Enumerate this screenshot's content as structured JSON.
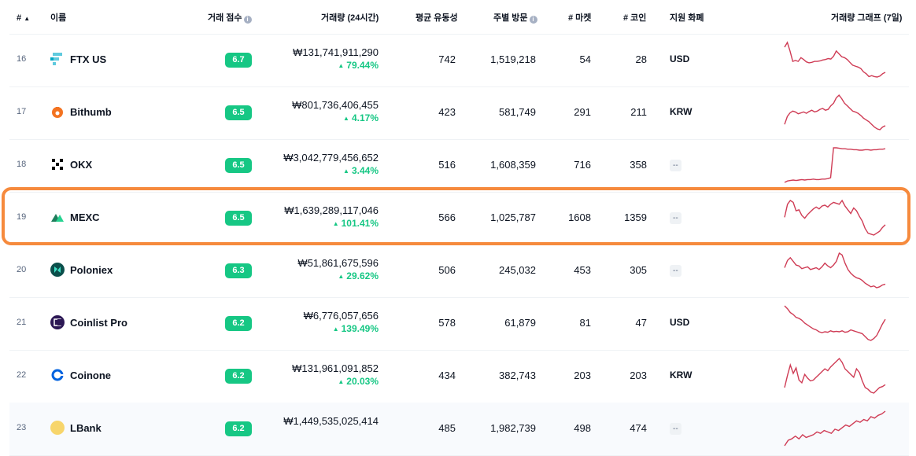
{
  "header": {
    "rank": "#",
    "sort_icon": "▲",
    "name": "이름",
    "score": "거래 점수",
    "volume": "거래량",
    "volume_period": "(24시간)",
    "liquidity": "평균 유동성",
    "visits": "주별 방문",
    "markets": "# 마켓",
    "coins": "# 코인",
    "fiat": "지원 화폐",
    "graph": "거래량 그래프",
    "graph_period": "(7일)"
  },
  "accent_green": "#16c784",
  "spark_color": "#cf3c55",
  "highlight_color": "#f68a3d",
  "rows": [
    {
      "rank": "16",
      "name": "FTX US",
      "logo": "ftx-logo",
      "score": "6.7",
      "volume": "₩131,741,911,290",
      "change": "79.44%",
      "liquidity": "742",
      "visits": "1,519,218",
      "markets": "54",
      "coins": "28",
      "fiat": "USD",
      "spark": [
        80,
        90,
        72,
        50,
        52,
        50,
        58,
        54,
        49,
        47,
        48,
        50,
        50,
        51,
        53,
        54,
        56,
        55,
        61,
        72,
        66,
        60,
        58,
        54,
        48,
        42,
        40,
        38,
        35,
        28,
        24,
        18,
        20,
        18,
        17,
        19,
        24,
        27
      ]
    },
    {
      "rank": "17",
      "name": "Bithumb",
      "logo": "bithumb-logo",
      "score": "6.5",
      "volume": "₩801,736,406,455",
      "change": "4.17%",
      "liquidity": "423",
      "visits": "581,749",
      "markets": "291",
      "coins": "211",
      "fiat": "KRW",
      "spark": [
        30,
        48,
        56,
        60,
        58,
        54,
        56,
        58,
        55,
        59,
        62,
        58,
        60,
        64,
        66,
        62,
        64,
        72,
        78,
        90,
        96,
        88,
        78,
        72,
        66,
        60,
        58,
        55,
        50,
        44,
        40,
        36,
        30,
        24,
        20,
        18,
        24,
        27
      ]
    },
    {
      "rank": "18",
      "name": "OKX",
      "logo": "okx-logo",
      "score": "6.5",
      "volume": "₩3,042,779,456,652",
      "change": "3.44%",
      "liquidity": "516",
      "visits": "1,608,359",
      "markets": "716",
      "coins": "358",
      "fiat": "--",
      "spark": [
        14,
        17,
        18,
        19,
        18,
        19,
        20,
        19,
        20,
        20,
        21,
        20,
        20,
        21,
        21,
        22,
        24,
        88,
        88,
        87,
        86,
        86,
        85,
        85,
        84,
        84,
        83,
        83,
        84,
        84,
        83,
        84,
        84,
        85,
        85,
        86
      ]
    },
    {
      "rank": "19",
      "name": "MEXC",
      "logo": "mexc-logo",
      "score": "6.5",
      "volume": "₩1,639,289,117,046",
      "change": "101.41%",
      "liquidity": "566",
      "visits": "1,025,787",
      "markets": "1608",
      "coins": "1359",
      "fiat": "--",
      "spark": [
        56,
        84,
        92,
        88,
        70,
        72,
        60,
        54,
        62,
        68,
        74,
        78,
        74,
        80,
        82,
        78,
        84,
        88,
        86,
        84,
        92,
        80,
        72,
        64,
        76,
        70,
        58,
        48,
        32,
        22,
        20,
        18,
        22,
        26,
        34,
        40
      ]
    },
    {
      "rank": "20",
      "name": "Poloniex",
      "logo": "poloniex-logo",
      "score": "6.3",
      "volume": "₩51,861,675,596",
      "change": "29.62%",
      "liquidity": "506",
      "visits": "245,032",
      "markets": "453",
      "coins": "305",
      "fiat": "--",
      "spark": [
        60,
        76,
        82,
        74,
        66,
        64,
        58,
        60,
        62,
        56,
        58,
        60,
        56,
        62,
        70,
        64,
        60,
        66,
        74,
        92,
        88,
        70,
        56,
        48,
        42,
        38,
        36,
        32,
        26,
        22,
        18,
        20,
        16,
        18,
        22,
        24
      ]
    },
    {
      "rank": "21",
      "name": "Coinlist Pro",
      "logo": "coinlist-logo",
      "score": "6.2",
      "volume": "₩6,776,057,656",
      "change": "139.49%",
      "liquidity": "578",
      "visits": "61,879",
      "markets": "81",
      "coins": "47",
      "fiat": "USD",
      "spark": [
        88,
        82,
        74,
        70,
        64,
        62,
        58,
        52,
        48,
        44,
        40,
        38,
        34,
        32,
        34,
        33,
        36,
        34,
        35,
        34,
        36,
        33,
        34,
        38,
        36,
        34,
        32,
        30,
        24,
        18,
        16,
        20,
        26,
        38,
        50,
        60
      ]
    },
    {
      "rank": "22",
      "name": "Coinone",
      "logo": "coinone-logo",
      "score": "6.2",
      "volume": "₩131,961,091,852",
      "change": "20.03%",
      "liquidity": "434",
      "visits": "382,743",
      "markets": "203",
      "coins": "203",
      "fiat": "KRW",
      "spark": [
        30,
        56,
        78,
        60,
        72,
        46,
        40,
        58,
        50,
        44,
        46,
        52,
        58,
        64,
        70,
        66,
        74,
        80,
        86,
        92,
        84,
        70,
        64,
        58,
        52,
        70,
        62,
        44,
        30,
        26,
        20,
        18,
        24,
        30,
        32,
        36
      ]
    },
    {
      "rank": "23",
      "name": "LBank",
      "logo": "lbank-logo",
      "score": "6.2",
      "volume": "₩1,449,535,025,414",
      "change": "",
      "liquidity": "485",
      "visits": "1,982,739",
      "markets": "498",
      "coins": "474",
      "fiat": "--",
      "spark": [
        10,
        18,
        20,
        24,
        20,
        26,
        22,
        24,
        26,
        30,
        28,
        32,
        30,
        28,
        34,
        32,
        36,
        40,
        38,
        42,
        46,
        44,
        48,
        46,
        52,
        50,
        54,
        56,
        60
      ]
    }
  ]
}
